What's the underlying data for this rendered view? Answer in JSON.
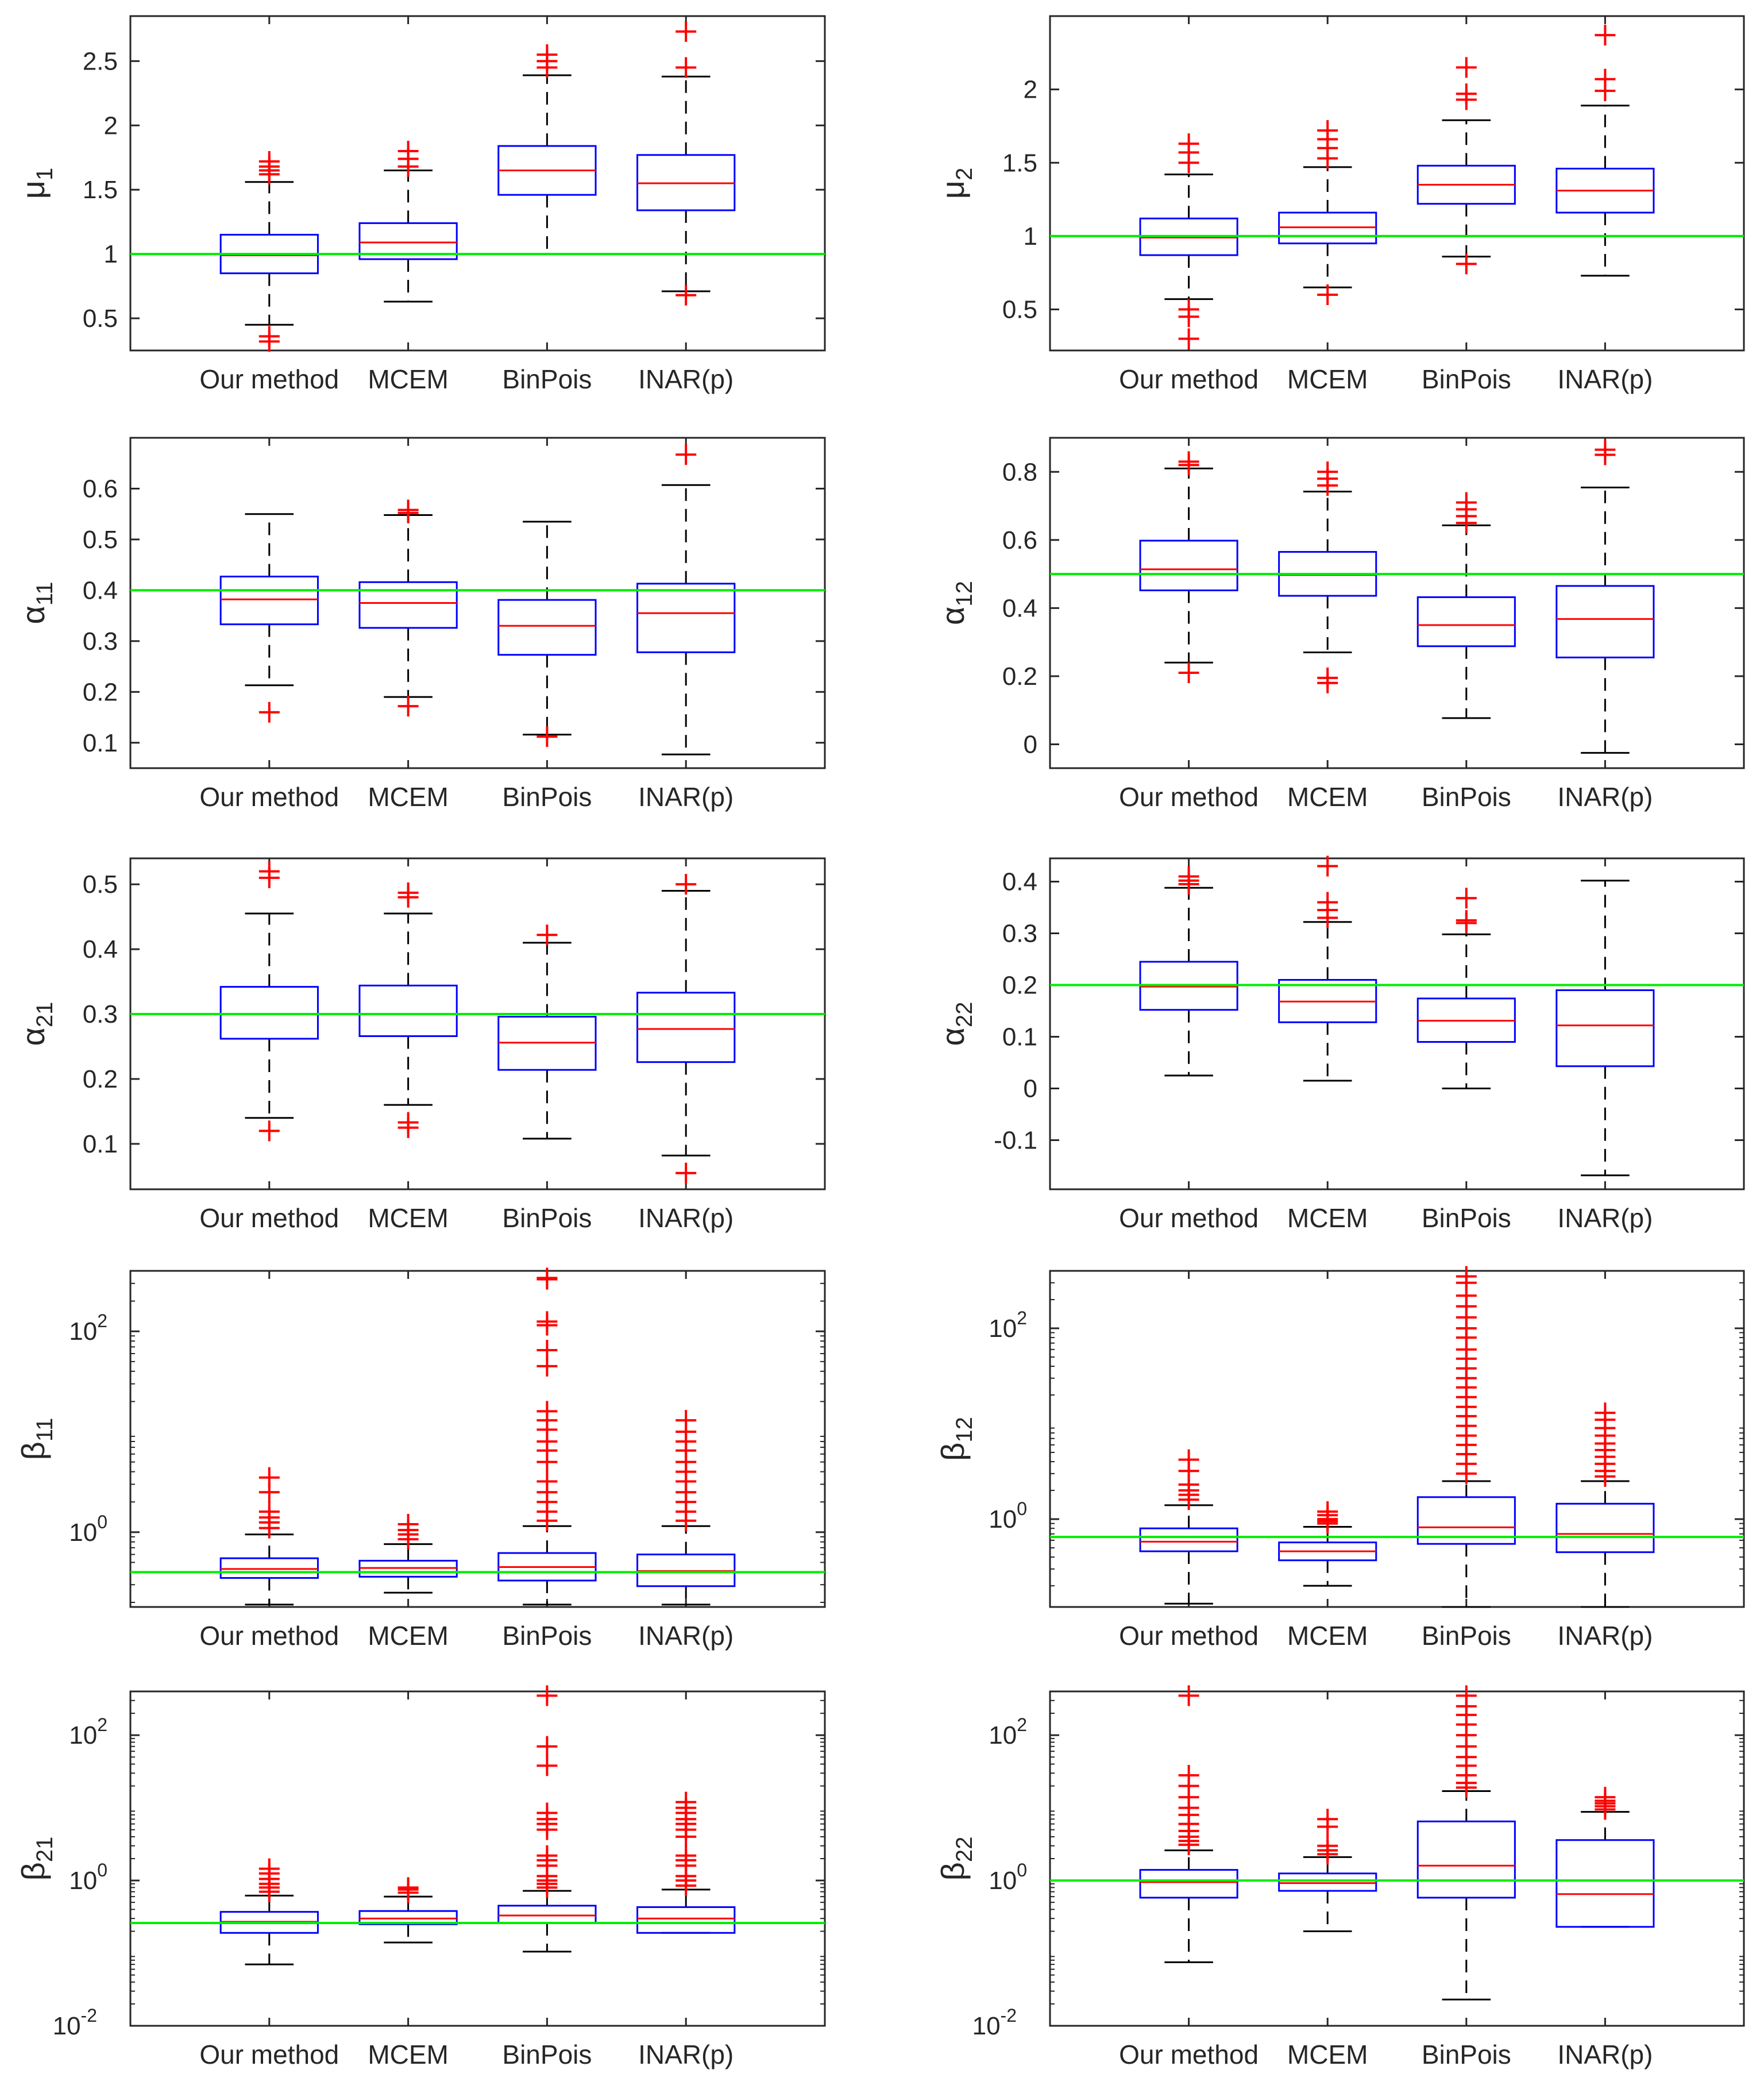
{
  "colors": {
    "box": "#0000ff",
    "median": "#ff0000",
    "outlier": "#ff0000",
    "whisker": "#000000",
    "reference_line": "#00ee00",
    "axes": "#262626"
  },
  "chart_data": [
    {
      "type": "box",
      "ylabel": {
        "symbol": "μ",
        "sub": "1"
      },
      "yscale": "linear",
      "ylim": [
        0.25,
        2.85
      ],
      "yticks": [
        0.5,
        1,
        1.5,
        2,
        2.5
      ],
      "ytick_labels": [
        "0.5",
        "1",
        "1.5",
        "2",
        "2.5"
      ],
      "reference": 1,
      "categories": [
        "Our method",
        "MCEM",
        "BinPois",
        "INAR(p)"
      ],
      "boxes": [
        {
          "q1": 0.85,
          "median": 0.99,
          "q3": 1.15,
          "whisker_low": 0.45,
          "whisker_high": 1.56,
          "outliers": [
            0.32,
            0.36,
            1.62,
            1.65,
            1.68,
            1.72
          ]
        },
        {
          "q1": 0.96,
          "median": 1.09,
          "q3": 1.24,
          "whisker_low": 0.63,
          "whisker_high": 1.65,
          "outliers": [
            1.68,
            1.74,
            1.8
          ]
        },
        {
          "q1": 1.46,
          "median": 1.65,
          "q3": 1.84,
          "whisker_low": 1.0,
          "whisker_high": 2.39,
          "outliers": [
            2.45,
            2.5,
            2.55
          ]
        },
        {
          "q1": 1.34,
          "median": 1.55,
          "q3": 1.77,
          "whisker_low": 0.71,
          "whisker_high": 2.38,
          "outliers": [
            0.68,
            2.45,
            2.73
          ]
        }
      ]
    },
    {
      "type": "box",
      "ylabel": {
        "symbol": "μ",
        "sub": "2"
      },
      "yscale": "linear",
      "ylim": [
        0.22,
        2.5
      ],
      "yticks": [
        0.5,
        1,
        1.5,
        2
      ],
      "ytick_labels": [
        "0.5",
        "1",
        "1.5",
        "2"
      ],
      "reference": 1,
      "categories": [
        "Our method",
        "MCEM",
        "BinPois",
        "INAR(p)"
      ],
      "boxes": [
        {
          "q1": 0.87,
          "median": 0.99,
          "q3": 1.12,
          "whisker_low": 0.57,
          "whisker_high": 1.42,
          "outliers": [
            0.3,
            0.45,
            0.5,
            1.5,
            1.57,
            1.63
          ]
        },
        {
          "q1": 0.95,
          "median": 1.06,
          "q3": 1.16,
          "whisker_low": 0.65,
          "whisker_high": 1.47,
          "outliers": [
            0.6,
            1.53,
            1.6,
            1.66,
            1.72
          ]
        },
        {
          "q1": 1.22,
          "median": 1.35,
          "q3": 1.48,
          "whisker_low": 0.86,
          "whisker_high": 1.79,
          "outliers": [
            0.81,
            1.93,
            1.97,
            2.15
          ]
        },
        {
          "q1": 1.16,
          "median": 1.31,
          "q3": 1.46,
          "whisker_low": 0.73,
          "whisker_high": 1.89,
          "outliers": [
            1.99,
            2.07,
            2.37
          ]
        }
      ]
    },
    {
      "type": "box",
      "ylabel": {
        "symbol": "α",
        "sub": "11"
      },
      "yscale": "linear",
      "ylim": [
        0.05,
        0.7
      ],
      "yticks": [
        0.1,
        0.2,
        0.3,
        0.4,
        0.5,
        0.6
      ],
      "ytick_labels": [
        "0.1",
        "0.2",
        "0.3",
        "0.4",
        "0.5",
        "0.6"
      ],
      "reference": 0.4,
      "categories": [
        "Our method",
        "MCEM",
        "BinPois",
        "INAR(p)"
      ],
      "boxes": [
        {
          "q1": 0.333,
          "median": 0.382,
          "q3": 0.427,
          "whisker_low": 0.213,
          "whisker_high": 0.55,
          "outliers": [
            0.16
          ]
        },
        {
          "q1": 0.326,
          "median": 0.375,
          "q3": 0.416,
          "whisker_low": 0.19,
          "whisker_high": 0.548,
          "outliers": [
            0.172,
            0.552,
            0.558
          ]
        },
        {
          "q1": 0.273,
          "median": 0.33,
          "q3": 0.381,
          "whisker_low": 0.116,
          "whisker_high": 0.535,
          "outliers": [
            0.112
          ]
        },
        {
          "q1": 0.278,
          "median": 0.355,
          "q3": 0.413,
          "whisker_low": 0.077,
          "whisker_high": 0.607,
          "outliers": [
            0.667
          ]
        }
      ]
    },
    {
      "type": "box",
      "ylabel": {
        "symbol": "α",
        "sub": "12"
      },
      "yscale": "linear",
      "ylim": [
        -0.07,
        0.9
      ],
      "yticks": [
        0,
        0.2,
        0.4,
        0.6,
        0.8
      ],
      "ytick_labels": [
        "0",
        "0.2",
        "0.4",
        "0.6",
        "0.8"
      ],
      "reference": 0.5,
      "categories": [
        "Our method",
        "MCEM",
        "BinPois",
        "INAR(p)"
      ],
      "boxes": [
        {
          "q1": 0.452,
          "median": 0.514,
          "q3": 0.598,
          "whisker_low": 0.24,
          "whisker_high": 0.81,
          "outliers": [
            0.21,
            0.82,
            0.83
          ]
        },
        {
          "q1": 0.436,
          "median": 0.497,
          "q3": 0.565,
          "whisker_low": 0.27,
          "whisker_high": 0.742,
          "outliers": [
            0.18,
            0.195,
            0.76,
            0.78,
            0.8
          ]
        },
        {
          "q1": 0.288,
          "median": 0.35,
          "q3": 0.432,
          "whisker_low": 0.077,
          "whisker_high": 0.643,
          "outliers": [
            0.65,
            0.67,
            0.69,
            0.71
          ]
        },
        {
          "q1": 0.255,
          "median": 0.368,
          "q3": 0.465,
          "whisker_low": -0.025,
          "whisker_high": 0.754,
          "outliers": [
            0.85,
            0.865
          ]
        }
      ]
    },
    {
      "type": "box",
      "ylabel": {
        "symbol": "α",
        "sub": "21"
      },
      "yscale": "linear",
      "ylim": [
        0.03,
        0.54
      ],
      "yticks": [
        0.1,
        0.2,
        0.3,
        0.4,
        0.5
      ],
      "ytick_labels": [
        "0.1",
        "0.2",
        "0.3",
        "0.4",
        "0.5"
      ],
      "reference": 0.3,
      "categories": [
        "Our method",
        "MCEM",
        "BinPois",
        "INAR(p)"
      ],
      "boxes": [
        {
          "q1": 0.262,
          "median": 0.3,
          "q3": 0.342,
          "whisker_low": 0.14,
          "whisker_high": 0.455,
          "outliers": [
            0.12,
            0.51,
            0.52
          ]
        },
        {
          "q1": 0.266,
          "median": 0.3,
          "q3": 0.344,
          "whisker_low": 0.16,
          "whisker_high": 0.455,
          "outliers": [
            0.125,
            0.133,
            0.48,
            0.487
          ]
        },
        {
          "q1": 0.214,
          "median": 0.256,
          "q3": 0.296,
          "whisker_low": 0.108,
          "whisker_high": 0.41,
          "outliers": [
            0.422
          ]
        },
        {
          "q1": 0.226,
          "median": 0.277,
          "q3": 0.333,
          "whisker_low": 0.082,
          "whisker_high": 0.49,
          "outliers": [
            0.055,
            0.5
          ]
        }
      ]
    },
    {
      "type": "box",
      "ylabel": {
        "symbol": "α",
        "sub": "22"
      },
      "yscale": "linear",
      "ylim": [
        -0.195,
        0.445
      ],
      "yticks": [
        -0.1,
        0,
        0.1,
        0.2,
        0.3,
        0.4
      ],
      "ytick_labels": [
        "-0.1",
        "0",
        "0.1",
        "0.2",
        "0.3",
        "0.4"
      ],
      "reference": 0.2,
      "categories": [
        "Our method",
        "MCEM",
        "BinPois",
        "INAR(p)"
      ],
      "boxes": [
        {
          "q1": 0.152,
          "median": 0.197,
          "q3": 0.245,
          "whisker_low": 0.025,
          "whisker_high": 0.388,
          "outliers": [
            0.395,
            0.402,
            0.41
          ]
        },
        {
          "q1": 0.128,
          "median": 0.168,
          "q3": 0.21,
          "whisker_low": 0.015,
          "whisker_high": 0.322,
          "outliers": [
            0.33,
            0.345,
            0.36,
            0.43
          ]
        },
        {
          "q1": 0.09,
          "median": 0.131,
          "q3": 0.174,
          "whisker_low": 0.0,
          "whisker_high": 0.298,
          "outliers": [
            0.32,
            0.325,
            0.368
          ]
        },
        {
          "q1": 0.043,
          "median": 0.122,
          "q3": 0.19,
          "whisker_low": -0.168,
          "whisker_high": 0.402,
          "outliers": []
        }
      ]
    },
    {
      "type": "box",
      "ylabel": {
        "symbol": "β",
        "sub": "11"
      },
      "yscale": "log",
      "ylim": [
        0.18,
        400
      ],
      "yticks": [
        1,
        100
      ],
      "ytick_labels": [
        {
          "base": "10",
          "exp": "0"
        },
        {
          "base": "10",
          "exp": "2"
        }
      ],
      "reference": 0.4,
      "categories": [
        "Our method",
        "MCEM",
        "BinPois",
        "INAR(p)"
      ],
      "boxes": [
        {
          "q1": 0.35,
          "median": 0.43,
          "q3": 0.55,
          "whisker_low": 0.19,
          "whisker_high": 0.95,
          "outliers": [
            1.1,
            1.25,
            1.4,
            1.6,
            2.5,
            3.5
          ]
        },
        {
          "q1": 0.36,
          "median": 0.44,
          "q3": 0.52,
          "whisker_low": 0.25,
          "whisker_high": 0.76,
          "outliers": [
            0.85,
            0.95,
            1.05,
            1.2
          ]
        },
        {
          "q1": 0.33,
          "median": 0.45,
          "q3": 0.62,
          "whisker_low": 0.19,
          "whisker_high": 1.15,
          "outliers": [
            1.3,
            1.6,
            2.0,
            2.5,
            3.2,
            5.0,
            6.5,
            8.0,
            10.5,
            13,
            16,
            45,
            65,
            115,
            125,
            330,
            340
          ]
        },
        {
          "q1": 0.29,
          "median": 0.41,
          "q3": 0.6,
          "whisker_low": 0.19,
          "whisker_high": 1.15,
          "outliers": [
            1.3,
            1.6,
            2.0,
            2.5,
            3.2,
            4.0,
            5.0,
            6.5,
            8.0,
            10,
            13
          ]
        }
      ]
    },
    {
      "type": "box",
      "ylabel": {
        "symbol": "β",
        "sub": "12"
      },
      "yscale": "log",
      "ylim": [
        0.12,
        400
      ],
      "yticks": [
        1,
        100
      ],
      "ytick_labels": [
        {
          "base": "10",
          "exp": "0"
        },
        {
          "base": "10",
          "exp": "2"
        }
      ],
      "reference": 0.65,
      "categories": [
        "Our method",
        "MCEM",
        "BinPois",
        "INAR(p)"
      ],
      "boxes": [
        {
          "q1": 0.46,
          "median": 0.58,
          "q3": 0.8,
          "whisker_low": 0.13,
          "whisker_high": 1.4,
          "outliers": [
            1.6,
            1.8,
            2.0,
            2.3,
            3.2,
            4.2
          ]
        },
        {
          "q1": 0.37,
          "median": 0.46,
          "q3": 0.57,
          "whisker_low": 0.2,
          "whisker_high": 0.83,
          "outliers": [
            0.9,
            0.95,
            1.0,
            1.1,
            1.2
          ]
        },
        {
          "q1": 0.55,
          "median": 0.82,
          "q3": 1.7,
          "whisker_low": 0.12,
          "whisker_high": 2.5,
          "outliers": [
            3,
            3.8,
            4.8,
            6,
            7.5,
            9.5,
            12,
            15,
            19,
            24,
            30,
            38,
            48,
            60,
            80,
            100,
            130,
            170,
            220,
            300,
            350
          ]
        },
        {
          "q1": 0.45,
          "median": 0.7,
          "q3": 1.45,
          "whisker_low": 0.12,
          "whisker_high": 2.5,
          "outliers": [
            2.8,
            3.2,
            3.8,
            4.5,
            5.3,
            6.2,
            7.5,
            9,
            11,
            13
          ]
        }
      ]
    },
    {
      "type": "box",
      "ylabel": {
        "symbol": "β",
        "sub": "21"
      },
      "yscale": "log",
      "ylim": [
        0.01,
        400
      ],
      "yticks": [
        0.01,
        1,
        100
      ],
      "ytick_labels": [
        {
          "base": "10",
          "exp": "-2"
        },
        {
          "base": "10",
          "exp": "0"
        },
        {
          "base": "10",
          "exp": "2"
        }
      ],
      "reference": 0.26,
      "categories": [
        "Our method",
        "MCEM",
        "BinPois",
        "INAR(p)"
      ],
      "boxes": [
        {
          "q1": 0.19,
          "median": 0.27,
          "q3": 0.37,
          "whisker_low": 0.07,
          "whisker_high": 0.62,
          "outliers": [
            0.7,
            0.8,
            0.9,
            1.05,
            1.25,
            1.45
          ]
        },
        {
          "q1": 0.25,
          "median": 0.3,
          "q3": 0.38,
          "whisker_low": 0.14,
          "whisker_high": 0.6,
          "outliers": [
            0.68,
            0.75,
            0.8
          ]
        },
        {
          "q1": 0.26,
          "median": 0.33,
          "q3": 0.45,
          "whisker_low": 0.105,
          "whisker_high": 0.72,
          "outliers": [
            0.8,
            0.9,
            1.0,
            1.15,
            1.6,
            1.9,
            2.2,
            5,
            6,
            7,
            8.5,
            38,
            70,
            350
          ]
        },
        {
          "q1": 0.19,
          "median": 0.3,
          "q3": 0.43,
          "whisker_low": 0.19,
          "whisker_high": 0.75,
          "outliers": [
            0.85,
            1.0,
            1.15,
            1.6,
            1.9,
            2.2,
            4,
            5,
            6,
            7,
            8.5,
            10,
            12
          ]
        }
      ]
    },
    {
      "type": "box",
      "ylabel": {
        "symbol": "β",
        "sub": "22"
      },
      "yscale": "log",
      "ylim": [
        0.01,
        400
      ],
      "yticks": [
        0.01,
        1,
        100
      ],
      "ytick_labels": [
        {
          "base": "10",
          "exp": "-2"
        },
        {
          "base": "10",
          "exp": "0"
        },
        {
          "base": "10",
          "exp": "2"
        }
      ],
      "reference": 1,
      "categories": [
        "Our method",
        "MCEM",
        "BinPois",
        "INAR(p)"
      ],
      "boxes": [
        {
          "q1": 0.58,
          "median": 0.95,
          "q3": 1.4,
          "whisker_low": 0.075,
          "whisker_high": 2.6,
          "outliers": [
            3.1,
            3.5,
            4.0,
            4.8,
            6,
            8,
            10,
            14,
            20,
            28,
            350
          ]
        },
        {
          "q1": 0.72,
          "median": 0.92,
          "q3": 1.25,
          "whisker_low": 0.2,
          "whisker_high": 2.1,
          "outliers": [
            2.3,
            2.6,
            3.0,
            5.5,
            7
          ]
        },
        {
          "q1": 0.58,
          "median": 1.6,
          "q3": 6.5,
          "whisker_low": 0.023,
          "whisker_high": 17,
          "outliers": [
            19,
            22,
            28,
            38,
            50,
            70,
            100,
            140,
            190,
            250,
            350
          ]
        },
        {
          "q1": 0.23,
          "median": 0.65,
          "q3": 3.6,
          "whisker_low": 0.23,
          "whisker_high": 8.8,
          "outliers": [
            9.5,
            10.5,
            11.5,
            12.5,
            14
          ]
        }
      ]
    }
  ]
}
